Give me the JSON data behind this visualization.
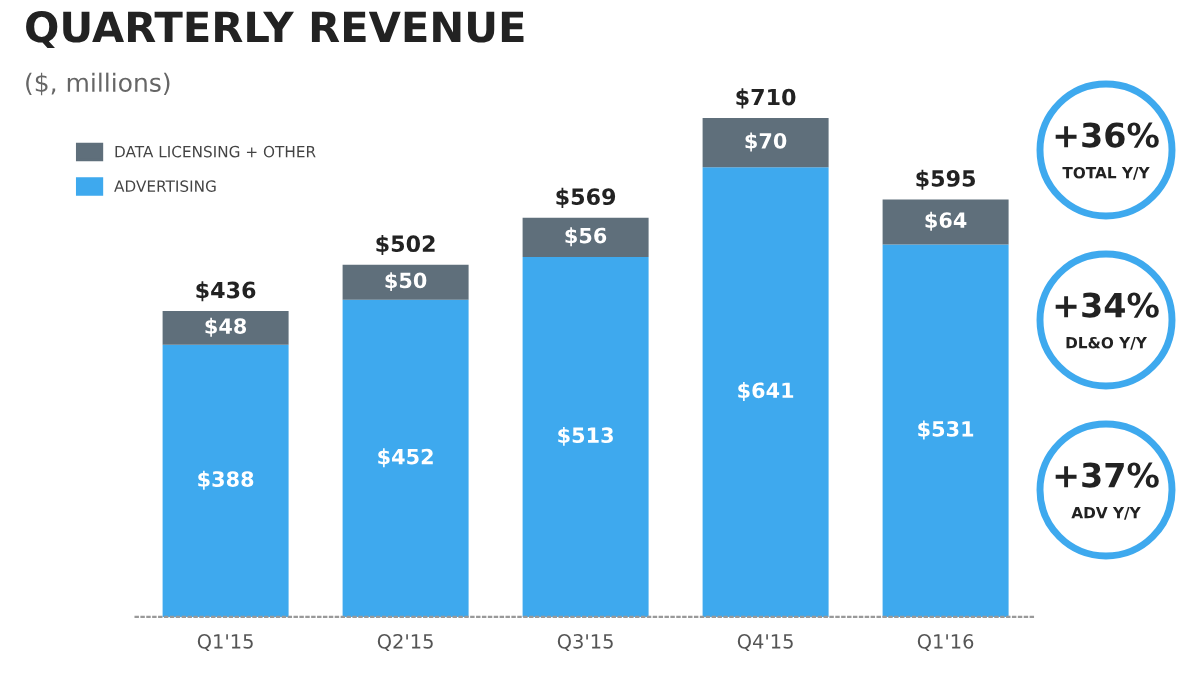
{
  "chart_data": {
    "type": "bar",
    "title": "QUARTERLY REVENUE",
    "subtitle": "($, millions)",
    "categories": [
      "Q1'15",
      "Q2'15",
      "Q3'15",
      "Q4'15",
      "Q1'16"
    ],
    "stacked": true,
    "data_labels": true,
    "legend": "top left",
    "series": [
      {
        "name": "ADVERTISING",
        "color": "#3ea9ee",
        "values": [
          388,
          452,
          513,
          641,
          531
        ],
        "value_labels": [
          "$388",
          "$452",
          "$513",
          "$641",
          "$531"
        ]
      },
      {
        "name": "DATA LICENSING + OTHER",
        "color": "#5f6f7b",
        "values": [
          48,
          50,
          56,
          70,
          64
        ],
        "value_labels": [
          "$48",
          "$50",
          "$56",
          "$70",
          "$64"
        ]
      }
    ],
    "totals": [
      "$436",
      "$502",
      "$569",
      "$710",
      "$595"
    ],
    "annotations": [
      "+36%",
      "TOTAL Y/Y",
      "+34%",
      "DL&O Y/Y",
      "+37%",
      "ADV Y/Y"
    ]
  }
}
